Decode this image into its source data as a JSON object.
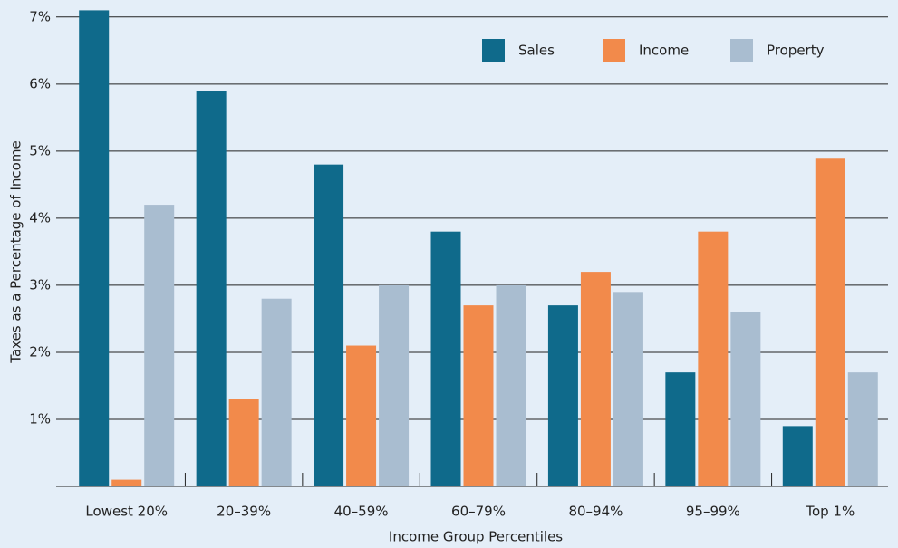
{
  "chart_data": {
    "type": "bar",
    "y_label": "Taxes as a Percentage of Income",
    "x_label": "Income Group Percentiles",
    "categories": [
      "Lowest 20%",
      "20–39%",
      "40–59%",
      "60–79%",
      "80–94%",
      "95–99%",
      "Top 1%"
    ],
    "series": [
      {
        "name": "Sales",
        "color": "#0f6a8b",
        "values": [
          7.1,
          5.9,
          4.8,
          3.8,
          2.7,
          1.7,
          0.9
        ]
      },
      {
        "name": "Income",
        "color": "#f28a4b",
        "values": [
          0.1,
          1.3,
          2.1,
          2.7,
          3.2,
          3.8,
          4.9
        ]
      },
      {
        "name": "Property",
        "color": "#a9bdd0",
        "values": [
          4.2,
          2.8,
          3.0,
          3.0,
          2.9,
          2.6,
          1.7
        ]
      }
    ],
    "ylim": [
      0,
      7.2
    ],
    "yticks": [
      {
        "value": 1,
        "label": "1%"
      },
      {
        "value": 2,
        "label": "2%"
      },
      {
        "value": 3,
        "label": "3%"
      },
      {
        "value": 4,
        "label": "4%"
      },
      {
        "value": 5,
        "label": "5%"
      },
      {
        "value": 6,
        "label": "6%"
      },
      {
        "value": 7,
        "label": "7%"
      }
    ],
    "grid": true,
    "legend": "upper right"
  }
}
